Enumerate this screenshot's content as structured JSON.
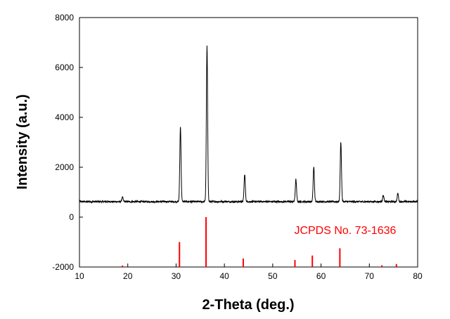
{
  "chart_data": {
    "type": "line",
    "xlabel": "2-Theta (deg.)",
    "ylabel": "Intensity (a.u.)",
    "xlim": [
      10,
      80
    ],
    "ylim": [
      -2000,
      8000
    ],
    "x_ticks": [
      10,
      20,
      30,
      40,
      50,
      60,
      70,
      80
    ],
    "y_ticks": [
      -2000,
      0,
      2000,
      4000,
      6000,
      8000
    ],
    "x_tick_labels": [
      "10",
      "20",
      "30",
      "40",
      "50",
      "60",
      "70",
      "80"
    ],
    "y_tick_labels": [
      "-2000",
      "0",
      "2000",
      "4000",
      "6000",
      "8000"
    ],
    "grid": false,
    "baseline": 620,
    "series": [
      {
        "color": "#000000",
        "peaks": [
          {
            "x": 18.9,
            "y": 800
          },
          {
            "x": 30.9,
            "y": 3620
          },
          {
            "x": 36.4,
            "y": 6850
          },
          {
            "x": 44.2,
            "y": 1720
          },
          {
            "x": 54.8,
            "y": 1510
          },
          {
            "x": 58.5,
            "y": 2010
          },
          {
            "x": 64.1,
            "y": 3010
          },
          {
            "x": 72.9,
            "y": 890
          },
          {
            "x": 75.9,
            "y": 950
          }
        ]
      },
      {
        "color": "#ff0000",
        "base": -2000,
        "sticks": [
          {
            "x": 18.9,
            "y": -1940
          },
          {
            "x": 30.7,
            "y": -1000
          },
          {
            "x": 36.2,
            "y": 0
          },
          {
            "x": 43.9,
            "y": -1660
          },
          {
            "x": 54.6,
            "y": -1720
          },
          {
            "x": 58.2,
            "y": -1540
          },
          {
            "x": 63.9,
            "y": -1250
          },
          {
            "x": 72.6,
            "y": -1930
          },
          {
            "x": 75.6,
            "y": -1880
          }
        ]
      }
    ],
    "annotation": {
      "text": "JCPDS No. 73-1636",
      "color": "#ff0000",
      "x": 65,
      "y": -500
    }
  }
}
